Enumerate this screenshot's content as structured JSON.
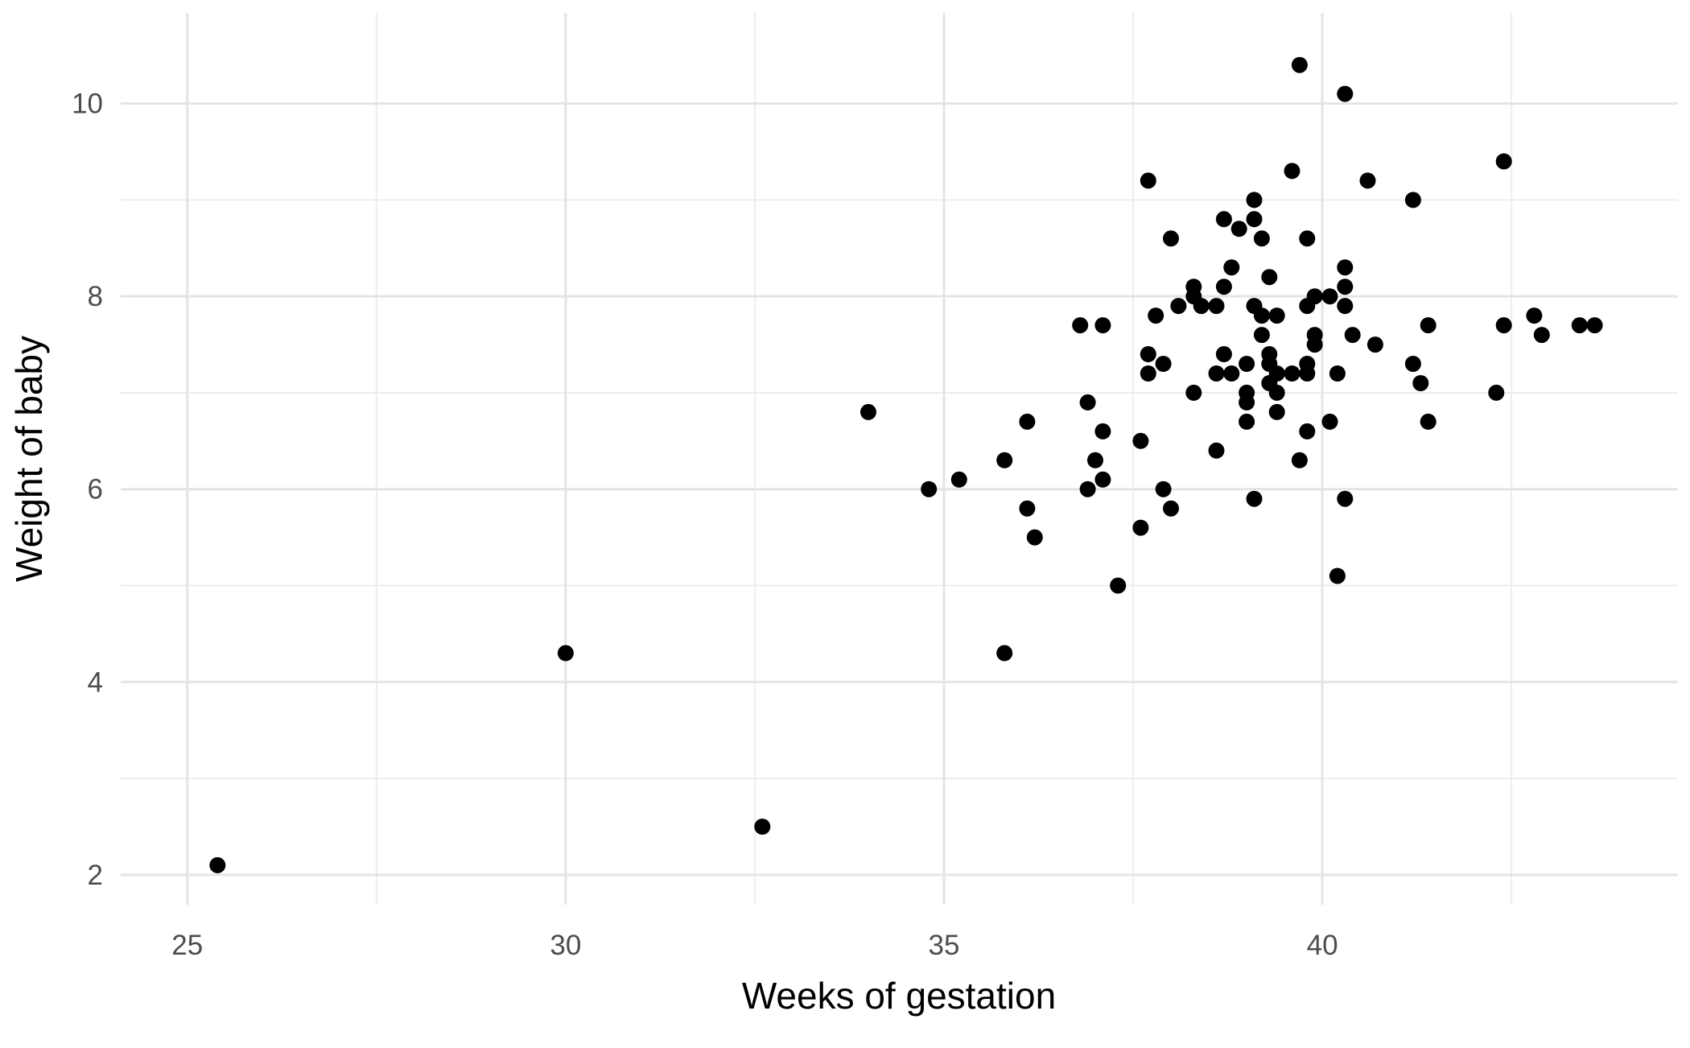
{
  "figure": {
    "background": "#FFFFFF"
  },
  "chart_data": {
    "type": "scatter",
    "title": "",
    "xlabel": "Weeks of gestation",
    "ylabel": "Weight of baby",
    "x_ticks": [
      25,
      30,
      35,
      40
    ],
    "x_minor_ticks": [
      27.5,
      32.5,
      37.5,
      42.5
    ],
    "y_ticks": [
      2,
      4,
      6,
      8,
      10
    ],
    "y_minor_ticks": [
      3,
      5,
      7,
      9
    ],
    "xlim": [
      24.12,
      44.7
    ],
    "ylim": [
      1.69,
      10.94
    ],
    "grid": "major-and-minor",
    "legend_position": "none",
    "marker": "filled-circle",
    "point_color": "#000000",
    "point_radius_px": 10,
    "grid_major_color": "#E4E4E4",
    "grid_minor_color": "#EDEDED",
    "tick_label_color": "#4D4D4D",
    "axis_title_color": "#000000",
    "background": "#FFFFFF",
    "points": [
      [
        25.4,
        2.1
      ],
      [
        30.0,
        4.3
      ],
      [
        32.6,
        2.5
      ],
      [
        35.8,
        4.3
      ],
      [
        34.0,
        6.8
      ],
      [
        36.1,
        6.7
      ],
      [
        36.9,
        6.9
      ],
      [
        35.8,
        6.3
      ],
      [
        35.2,
        6.1
      ],
      [
        34.8,
        6.0
      ],
      [
        36.1,
        5.8
      ],
      [
        36.2,
        5.5
      ],
      [
        36.8,
        7.7
      ],
      [
        37.7,
        9.2
      ],
      [
        39.6,
        9.3
      ],
      [
        40.6,
        9.2
      ],
      [
        39.1,
        9.0
      ],
      [
        39.1,
        8.8
      ],
      [
        38.7,
        8.8
      ],
      [
        38.9,
        8.7
      ],
      [
        39.2,
        8.6
      ],
      [
        39.8,
        8.6
      ],
      [
        38.0,
        8.6
      ],
      [
        40.3,
        8.3
      ],
      [
        38.8,
        8.3
      ],
      [
        38.7,
        8.1
      ],
      [
        39.3,
        8.2
      ],
      [
        38.3,
        8.1
      ],
      [
        38.3,
        8.0
      ],
      [
        39.9,
        8.0
      ],
      [
        40.1,
        8.0
      ],
      [
        40.3,
        8.1
      ],
      [
        40.3,
        7.9
      ],
      [
        38.1,
        7.9
      ],
      [
        38.4,
        7.9
      ],
      [
        38.6,
        7.9
      ],
      [
        37.8,
        7.8
      ],
      [
        37.1,
        7.7
      ],
      [
        39.1,
        7.9
      ],
      [
        39.2,
        7.8
      ],
      [
        39.4,
        7.8
      ],
      [
        39.8,
        7.9
      ],
      [
        39.9,
        7.6
      ],
      [
        39.2,
        7.6
      ],
      [
        40.4,
        7.6
      ],
      [
        40.7,
        7.5
      ],
      [
        39.9,
        7.5
      ],
      [
        37.7,
        7.4
      ],
      [
        37.9,
        7.3
      ],
      [
        37.7,
        7.2
      ],
      [
        38.7,
        7.4
      ],
      [
        38.6,
        7.2
      ],
      [
        39.0,
        7.3
      ],
      [
        39.3,
        7.4
      ],
      [
        39.3,
        7.3
      ],
      [
        39.4,
        7.2
      ],
      [
        38.8,
        7.2
      ],
      [
        39.6,
        7.2
      ],
      [
        39.8,
        7.3
      ],
      [
        39.8,
        7.2
      ],
      [
        40.2,
        7.2
      ],
      [
        38.3,
        7.0
      ],
      [
        39.0,
        7.0
      ],
      [
        39.0,
        6.9
      ],
      [
        39.3,
        7.1
      ],
      [
        39.4,
        7.0
      ],
      [
        39.4,
        6.8
      ],
      [
        40.1,
        6.7
      ],
      [
        39.0,
        6.7
      ],
      [
        37.1,
        6.6
      ],
      [
        37.6,
        6.5
      ],
      [
        39.8,
        6.6
      ],
      [
        38.6,
        6.4
      ],
      [
        39.7,
        6.3
      ],
      [
        37.0,
        6.3
      ],
      [
        37.1,
        6.1
      ],
      [
        36.9,
        6.0
      ],
      [
        37.9,
        6.0
      ],
      [
        38.0,
        5.8
      ],
      [
        39.1,
        5.9
      ],
      [
        40.3,
        5.9
      ],
      [
        37.6,
        5.6
      ],
      [
        37.3,
        5.0
      ],
      [
        40.2,
        5.1
      ],
      [
        39.7,
        10.4
      ],
      [
        40.3,
        10.1
      ],
      [
        42.4,
        9.4
      ],
      [
        41.2,
        9.0
      ],
      [
        41.4,
        7.7
      ],
      [
        42.4,
        7.7
      ],
      [
        42.8,
        7.8
      ],
      [
        42.9,
        7.6
      ],
      [
        43.4,
        7.7
      ],
      [
        43.6,
        7.7
      ],
      [
        41.2,
        7.3
      ],
      [
        41.3,
        7.1
      ],
      [
        42.3,
        7.0
      ],
      [
        41.4,
        6.7
      ]
    ]
  }
}
